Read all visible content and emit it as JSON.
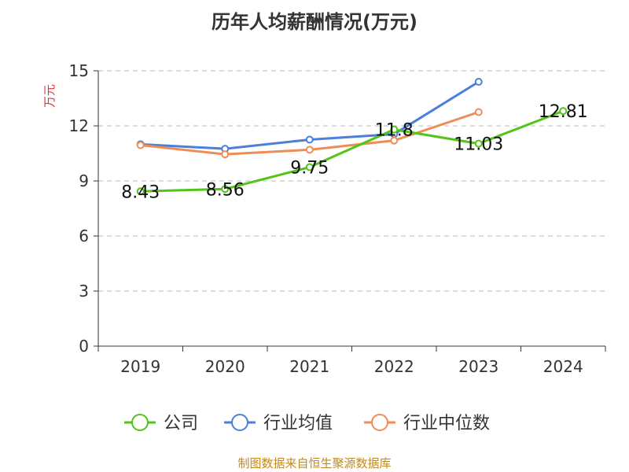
{
  "title": "历年人均薪酬情况(万元)",
  "footer": "制图数据来自恒生聚源数据库",
  "chart_data": {
    "type": "line",
    "title": "历年人均薪酬情况(万元)",
    "ylabel": "万元",
    "xlabel": "",
    "categories": [
      "2019",
      "2020",
      "2021",
      "2022",
      "2023",
      "2024"
    ],
    "ylim": [
      0,
      15
    ],
    "yticks": [
      0,
      3,
      6,
      9,
      12,
      15
    ],
    "grid": "horizontal dashed",
    "legend_position": "bottom",
    "series": [
      {
        "name": "公司",
        "color": "#52c41a",
        "values": [
          8.43,
          8.56,
          9.75,
          11.8,
          11.03,
          12.81
        ],
        "show_labels": true
      },
      {
        "name": "行业均值",
        "color": "#4a7fdc",
        "values": [
          11.0,
          10.75,
          11.25,
          11.55,
          14.4,
          null
        ],
        "show_labels": false
      },
      {
        "name": "行业中位数",
        "color": "#f08c55",
        "values": [
          10.95,
          10.45,
          10.7,
          11.2,
          12.75,
          null
        ],
        "show_labels": false
      }
    ],
    "data_labels": [
      "8.43",
      "8.56",
      "9.75",
      "11.8",
      "11.03",
      "12.81"
    ]
  }
}
